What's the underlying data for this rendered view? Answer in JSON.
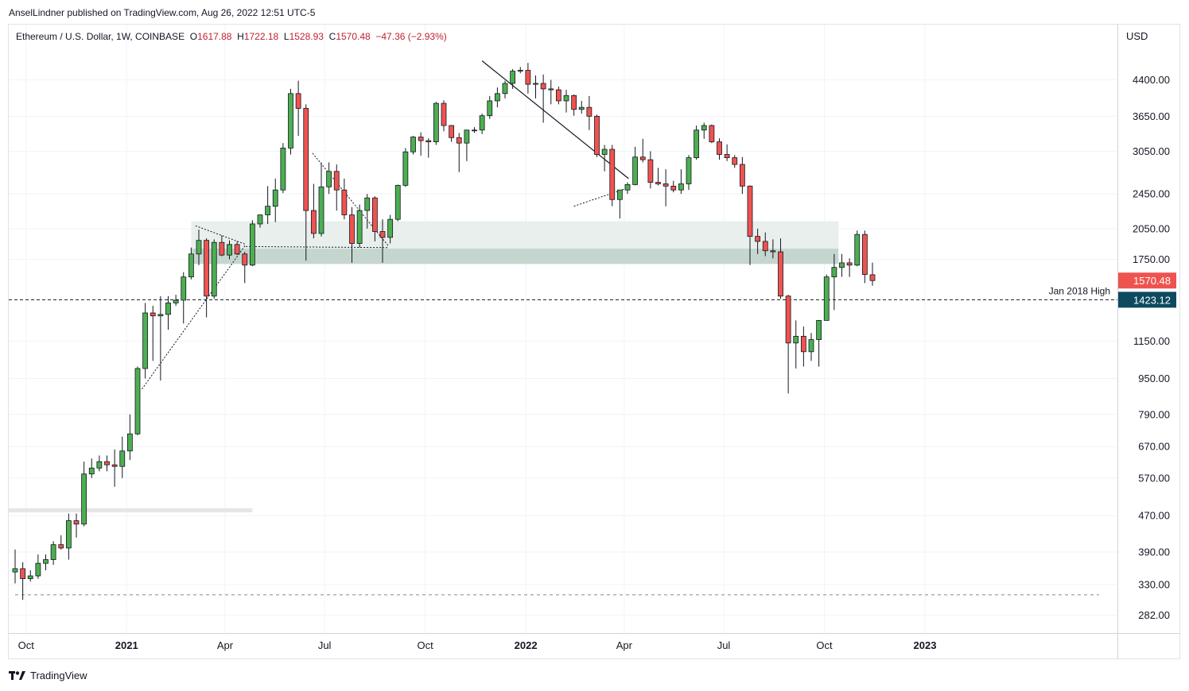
{
  "header": {
    "publish_line": "AnselLindner published on TradingView.com, Aug 26, 2022 12:51 UTC-5"
  },
  "legend": {
    "symbol": "Ethereum / U.S. Dollar, 1W, COINBASE",
    "o_label": "O",
    "o_value": "1617.88",
    "h_label": "H",
    "h_value": "1722.18",
    "l_label": "L",
    "l_value": "1528.93",
    "c_label": "C",
    "c_value": "1570.48",
    "change": "−47.36 (−2.93%)"
  },
  "axis": {
    "currency": "USD"
  },
  "footer": {
    "brand": "TradingView"
  },
  "colors": {
    "up": "#4caf50",
    "down": "#ef5350",
    "wick": "#131722",
    "zone_light": "#e8efec",
    "zone_dark": "#c5d6cf",
    "price_badge": "#ef5350",
    "level_badge": "#0e4a5f",
    "grid": "#f0f3fa"
  },
  "chart_data": {
    "type": "candlestick",
    "timeframe": "1W",
    "y_scale": "log",
    "ylim": [
      260,
      5400
    ],
    "y_ticks": [
      "4400.00",
      "3650.00",
      "3050.00",
      "2450.00",
      "2050.00",
      "1750.00",
      "1150.00",
      "950.00",
      "790.00",
      "670.00",
      "570.00",
      "470.00",
      "390.00",
      "330.00",
      "282.00"
    ],
    "x_ticks": [
      {
        "label": "Oct",
        "date": "2020-10-01",
        "bold": false
      },
      {
        "label": "2021",
        "date": "2021-01-01",
        "bold": true
      },
      {
        "label": "Apr",
        "date": "2021-04-01",
        "bold": false
      },
      {
        "label": "Jul",
        "date": "2021-07-01",
        "bold": false
      },
      {
        "label": "Oct",
        "date": "2021-10-01",
        "bold": false
      },
      {
        "label": "2022",
        "date": "2022-01-01",
        "bold": true
      },
      {
        "label": "Apr",
        "date": "2022-04-01",
        "bold": false
      },
      {
        "label": "Jul",
        "date": "2022-07-01",
        "bold": false
      },
      {
        "label": "Oct",
        "date": "2022-10-01",
        "bold": false
      },
      {
        "label": "2023",
        "date": "2023-01-01",
        "bold": true
      }
    ],
    "current_price": "1570.48",
    "level": {
      "label": "Jan 2018 High",
      "value": "1423.12"
    },
    "candles": [
      {
        "date": "2020-09-21",
        "o": 352,
        "h": 395,
        "l": 332,
        "c": 358
      },
      {
        "date": "2020-09-28",
        "o": 358,
        "h": 370,
        "l": 305,
        "c": 340
      },
      {
        "date": "2020-10-05",
        "o": 340,
        "h": 355,
        "l": 335,
        "c": 345
      },
      {
        "date": "2020-10-12",
        "o": 345,
        "h": 385,
        "l": 340,
        "c": 368
      },
      {
        "date": "2020-10-19",
        "o": 368,
        "h": 385,
        "l": 355,
        "c": 375
      },
      {
        "date": "2020-10-26",
        "o": 375,
        "h": 412,
        "l": 365,
        "c": 405
      },
      {
        "date": "2020-11-02",
        "o": 405,
        "h": 425,
        "l": 395,
        "c": 398
      },
      {
        "date": "2020-11-09",
        "o": 398,
        "h": 475,
        "l": 375,
        "c": 458
      },
      {
        "date": "2020-11-16",
        "o": 458,
        "h": 475,
        "l": 420,
        "c": 450
      },
      {
        "date": "2020-11-23",
        "o": 450,
        "h": 620,
        "l": 445,
        "c": 582
      },
      {
        "date": "2020-11-30",
        "o": 582,
        "h": 630,
        "l": 570,
        "c": 600
      },
      {
        "date": "2020-12-07",
        "o": 600,
        "h": 640,
        "l": 590,
        "c": 620
      },
      {
        "date": "2020-12-14",
        "o": 620,
        "h": 640,
        "l": 590,
        "c": 610
      },
      {
        "date": "2020-12-21",
        "o": 610,
        "h": 660,
        "l": 545,
        "c": 605
      },
      {
        "date": "2020-12-28",
        "o": 605,
        "h": 705,
        "l": 570,
        "c": 655
      },
      {
        "date": "2021-01-04",
        "o": 655,
        "h": 790,
        "l": 625,
        "c": 715
      },
      {
        "date": "2021-01-11",
        "o": 715,
        "h": 1010,
        "l": 710,
        "c": 1000
      },
      {
        "date": "2021-01-18",
        "o": 1000,
        "h": 1400,
        "l": 950,
        "c": 1330
      },
      {
        "date": "2021-01-25",
        "o": 1330,
        "h": 1380,
        "l": 1040,
        "c": 1310
      },
      {
        "date": "2021-02-01",
        "o": 1310,
        "h": 1450,
        "l": 940,
        "c": 1320
      },
      {
        "date": "2021-02-08",
        "o": 1320,
        "h": 1450,
        "l": 1220,
        "c": 1400
      },
      {
        "date": "2021-02-15",
        "o": 1400,
        "h": 1460,
        "l": 1380,
        "c": 1420
      },
      {
        "date": "2021-02-22",
        "o": 1420,
        "h": 1640,
        "l": 1260,
        "c": 1600
      },
      {
        "date": "2021-03-01",
        "o": 1600,
        "h": 1860,
        "l": 1580,
        "c": 1800
      },
      {
        "date": "2021-03-08",
        "o": 1800,
        "h": 2040,
        "l": 1700,
        "c": 1930
      },
      {
        "date": "2021-03-15",
        "o": 1930,
        "h": 1950,
        "l": 1300,
        "c": 1450
      },
      {
        "date": "2021-03-22",
        "o": 1450,
        "h": 1940,
        "l": 1430,
        "c": 1910
      },
      {
        "date": "2021-03-29",
        "o": 1910,
        "h": 1980,
        "l": 1780,
        "c": 1790
      },
      {
        "date": "2021-04-05",
        "o": 1790,
        "h": 1930,
        "l": 1750,
        "c": 1890
      },
      {
        "date": "2021-04-12",
        "o": 1890,
        "h": 1920,
        "l": 1790,
        "c": 1800
      },
      {
        "date": "2021-04-19",
        "o": 1800,
        "h": 1820,
        "l": 1550,
        "c": 1700
      },
      {
        "date": "2021-04-26",
        "o": 1700,
        "h": 2140,
        "l": 1690,
        "c": 2100
      },
      {
        "date": "2021-05-03",
        "o": 2100,
        "h": 2200,
        "l": 2060,
        "c": 2200
      },
      {
        "date": "2021-05-10",
        "o": 2200,
        "h": 2550,
        "l": 2100,
        "c": 2300
      },
      {
        "date": "2021-05-17",
        "o": 2300,
        "h": 2650,
        "l": 2120,
        "c": 2500
      },
      {
        "date": "2021-05-24",
        "o": 2500,
        "h": 3180,
        "l": 2460,
        "c": 3100
      },
      {
        "date": "2021-05-31",
        "o": 3100,
        "h": 4200,
        "l": 3000,
        "c": 4100
      },
      {
        "date": "2021-06-07",
        "o": 4100,
        "h": 4380,
        "l": 3300,
        "c": 3800
      },
      {
        "date": "2021-06-14",
        "o": 3800,
        "h": 3880,
        "l": 1740,
        "c": 2250
      },
      {
        "date": "2021-06-21",
        "o": 2250,
        "h": 2580,
        "l": 1950,
        "c": 2000
      },
      {
        "date": "2021-06-28",
        "o": 2000,
        "h": 2880,
        "l": 1970,
        "c": 2540
      },
      {
        "date": "2021-07-05",
        "o": 2540,
        "h": 2880,
        "l": 2450,
        "c": 2750
      },
      {
        "date": "2021-07-12",
        "o": 2750,
        "h": 2850,
        "l": 2250,
        "c": 2500
      },
      {
        "date": "2021-07-19",
        "o": 2500,
        "h": 2650,
        "l": 2150,
        "c": 2200
      },
      {
        "date": "2021-07-26",
        "o": 2200,
        "h": 2290,
        "l": 1720,
        "c": 1900
      },
      {
        "date": "2021-08-02",
        "o": 1900,
        "h": 2320,
        "l": 1860,
        "c": 2250
      },
      {
        "date": "2021-08-09",
        "o": 2250,
        "h": 2450,
        "l": 2050,
        "c": 2400
      },
      {
        "date": "2021-08-16",
        "o": 2400,
        "h": 2420,
        "l": 1920,
        "c": 2020
      },
      {
        "date": "2021-08-23",
        "o": 2020,
        "h": 2150,
        "l": 1720,
        "c": 1960
      },
      {
        "date": "2021-08-30",
        "o": 1960,
        "h": 2200,
        "l": 1900,
        "c": 2150
      },
      {
        "date": "2021-09-06",
        "o": 2150,
        "h": 2570,
        "l": 2130,
        "c": 2560
      },
      {
        "date": "2021-09-13",
        "o": 2560,
        "h": 3100,
        "l": 2540,
        "c": 3040
      },
      {
        "date": "2021-09-20",
        "o": 3040,
        "h": 3300,
        "l": 3000,
        "c": 3280
      },
      {
        "date": "2021-09-27",
        "o": 3280,
        "h": 3360,
        "l": 2980,
        "c": 3220
      },
      {
        "date": "2021-10-04",
        "o": 3220,
        "h": 3260,
        "l": 2950,
        "c": 3200
      },
      {
        "date": "2021-10-11",
        "o": 3200,
        "h": 3930,
        "l": 3150,
        "c": 3900
      },
      {
        "date": "2021-10-18",
        "o": 3900,
        "h": 3960,
        "l": 3380,
        "c": 3480
      },
      {
        "date": "2021-10-25",
        "o": 3480,
        "h": 3490,
        "l": 3200,
        "c": 3270
      },
      {
        "date": "2021-11-01",
        "o": 3270,
        "h": 3350,
        "l": 2740,
        "c": 3180
      },
      {
        "date": "2021-11-08",
        "o": 3180,
        "h": 3400,
        "l": 2900,
        "c": 3400
      },
      {
        "date": "2021-11-15",
        "o": 3400,
        "h": 3450,
        "l": 3350,
        "c": 3400
      },
      {
        "date": "2021-11-22",
        "o": 3400,
        "h": 3700,
        "l": 3330,
        "c": 3660
      },
      {
        "date": "2021-11-29",
        "o": 3660,
        "h": 4050,
        "l": 3600,
        "c": 3950
      },
      {
        "date": "2021-12-06",
        "o": 3950,
        "h": 4230,
        "l": 3820,
        "c": 4100
      },
      {
        "date": "2021-12-13",
        "o": 4100,
        "h": 4380,
        "l": 4000,
        "c": 4320
      },
      {
        "date": "2021-12-20",
        "o": 4320,
        "h": 4650,
        "l": 4200,
        "c": 4600
      },
      {
        "date": "2021-12-27",
        "o": 4600,
        "h": 4700,
        "l": 4550,
        "c": 4620
      },
      {
        "date": "2022-01-03",
        "o": 4620,
        "h": 4800,
        "l": 4100,
        "c": 4300
      },
      {
        "date": "2022-01-10",
        "o": 4300,
        "h": 4500,
        "l": 4000,
        "c": 4320
      },
      {
        "date": "2022-01-17",
        "o": 4320,
        "h": 4520,
        "l": 3530,
        "c": 4200
      },
      {
        "date": "2022-01-24",
        "o": 4200,
        "h": 4400,
        "l": 3880,
        "c": 4180
      },
      {
        "date": "2022-01-31",
        "o": 4180,
        "h": 4250,
        "l": 3880,
        "c": 3950
      },
      {
        "date": "2022-02-07",
        "o": 3950,
        "h": 4180,
        "l": 3720,
        "c": 4060
      },
      {
        "date": "2022-02-14",
        "o": 4060,
        "h": 4080,
        "l": 3660,
        "c": 3780
      },
      {
        "date": "2022-02-21",
        "o": 3780,
        "h": 3950,
        "l": 3700,
        "c": 3820
      },
      {
        "date": "2022-02-28",
        "o": 3820,
        "h": 4050,
        "l": 3400,
        "c": 3650
      },
      {
        "date": "2022-03-07",
        "o": 3650,
        "h": 3680,
        "l": 2960,
        "c": 3000
      },
      {
        "date": "2022-03-14",
        "o": 3000,
        "h": 3150,
        "l": 2750,
        "c": 3080
      },
      {
        "date": "2022-03-21",
        "o": 3080,
        "h": 3150,
        "l": 2300,
        "c": 2380
      },
      {
        "date": "2022-03-28",
        "o": 2380,
        "h": 2500,
        "l": 2160,
        "c": 2500
      },
      {
        "date": "2022-04-04",
        "o": 2500,
        "h": 2600,
        "l": 2450,
        "c": 2570
      },
      {
        "date": "2022-04-11",
        "o": 2570,
        "h": 3120,
        "l": 2560,
        "c": 2960
      },
      {
        "date": "2022-04-18",
        "o": 2960,
        "h": 3250,
        "l": 2880,
        "c": 2920
      },
      {
        "date": "2022-04-25",
        "o": 2920,
        "h": 3050,
        "l": 2520,
        "c": 2600
      },
      {
        "date": "2022-05-02",
        "o": 2600,
        "h": 2800,
        "l": 2560,
        "c": 2580
      },
      {
        "date": "2022-05-09",
        "o": 2580,
        "h": 2780,
        "l": 2300,
        "c": 2550
      },
      {
        "date": "2022-05-16",
        "o": 2550,
        "h": 2620,
        "l": 2470,
        "c": 2500
      },
      {
        "date": "2022-05-23",
        "o": 2500,
        "h": 2780,
        "l": 2450,
        "c": 2580
      },
      {
        "date": "2022-05-30",
        "o": 2580,
        "h": 2990,
        "l": 2500,
        "c": 2950
      },
      {
        "date": "2022-06-06",
        "o": 2950,
        "h": 3480,
        "l": 2920,
        "c": 3400
      },
      {
        "date": "2022-06-13",
        "o": 3400,
        "h": 3530,
        "l": 3250,
        "c": 3480
      },
      {
        "date": "2022-06-20",
        "o": 3480,
        "h": 3500,
        "l": 3180,
        "c": 3200
      },
      {
        "date": "2022-06-27",
        "o": 3200,
        "h": 3260,
        "l": 2920,
        "c": 3000
      },
      {
        "date": "2022-07-04",
        "o": 3000,
        "h": 3160,
        "l": 2900,
        "c": 2950
      },
      {
        "date": "2022-07-11",
        "o": 2950,
        "h": 2990,
        "l": 2800,
        "c": 2850
      },
      {
        "date": "2022-07-18",
        "o": 2850,
        "h": 2960,
        "l": 2450,
        "c": 2550
      },
      {
        "date": "2022-07-25",
        "o": 2550,
        "h": 2560,
        "l": 1700,
        "c": 1970
      },
      {
        "date": "2022-08-01",
        "o": 1970,
        "h": 2050,
        "l": 1800,
        "c": 1920
      },
      {
        "date": "2022-08-08",
        "o": 1920,
        "h": 2010,
        "l": 1780,
        "c": 1830
      },
      {
        "date": "2022-08-15",
        "o": 1830,
        "h": 1940,
        "l": 1760,
        "c": 1820
      },
      {
        "date": "2022-08-22",
        "o": 1820,
        "h": 1950,
        "l": 1430,
        "c": 1450
      },
      {
        "date": "2022-08-29",
        "o": 1450,
        "h": 1460,
        "l": 880,
        "c": 1140
      },
      {
        "date": "2022-09-05",
        "o": 1140,
        "h": 1280,
        "l": 1000,
        "c": 1180
      },
      {
        "date": "2022-09-12",
        "o": 1180,
        "h": 1240,
        "l": 1010,
        "c": 1090
      },
      {
        "date": "2022-09-19",
        "o": 1090,
        "h": 1200,
        "l": 1040,
        "c": 1160
      },
      {
        "date": "2022-09-26",
        "o": 1160,
        "h": 1260,
        "l": 1010,
        "c": 1280
      },
      {
        "date": "2022-10-03",
        "o": 1280,
        "h": 1620,
        "l": 1280,
        "c": 1600
      },
      {
        "date": "2022-10-10",
        "o": 1600,
        "h": 1800,
        "l": 1350,
        "c": 1680
      },
      {
        "date": "2022-10-17",
        "o": 1680,
        "h": 1800,
        "l": 1600,
        "c": 1720
      },
      {
        "date": "2022-10-24",
        "o": 1720,
        "h": 1760,
        "l": 1600,
        "c": 1700
      },
      {
        "date": "2022-10-31",
        "o": 1700,
        "h": 2030,
        "l": 1690,
        "c": 1990
      },
      {
        "date": "2022-11-07",
        "o": 1990,
        "h": 2030,
        "l": 1550,
        "c": 1620
      },
      {
        "date": "2022-11-14",
        "o": 1617.88,
        "h": 1722.18,
        "l": 1528.93,
        "c": 1570.48
      }
    ]
  }
}
